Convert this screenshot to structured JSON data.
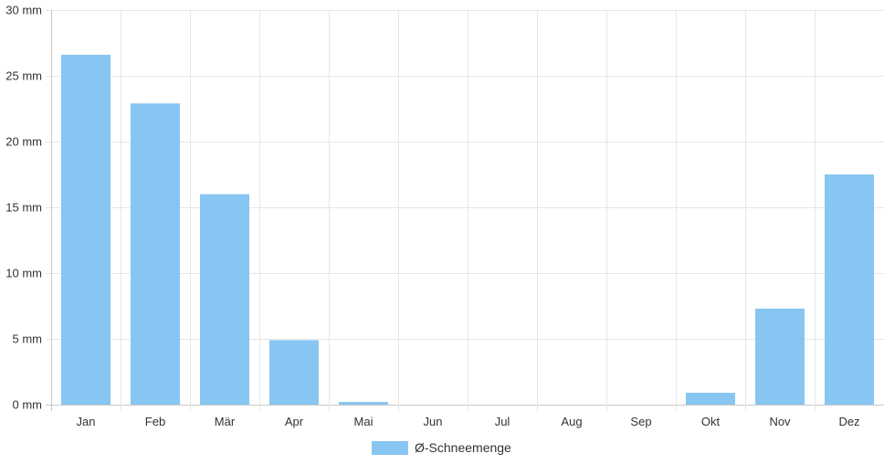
{
  "chart_data": {
    "type": "bar",
    "categories": [
      "Jan",
      "Feb",
      "Mär",
      "Apr",
      "Mai",
      "Jun",
      "Jul",
      "Aug",
      "Sep",
      "Okt",
      "Nov",
      "Dez"
    ],
    "series": [
      {
        "name": "Ø-Schneemenge",
        "values": [
          26.6,
          22.9,
          16.0,
          4.9,
          0.2,
          0,
          0,
          0,
          0,
          0.9,
          7.3,
          17.5
        ],
        "color": "#87c5f2"
      }
    ],
    "yticks": [
      "0 mm",
      "5 mm",
      "10 mm",
      "15 mm",
      "20 mm",
      "25 mm",
      "30 mm"
    ],
    "ylim": [
      0,
      30
    ],
    "grid": true,
    "legend_position": "bottom-center"
  }
}
